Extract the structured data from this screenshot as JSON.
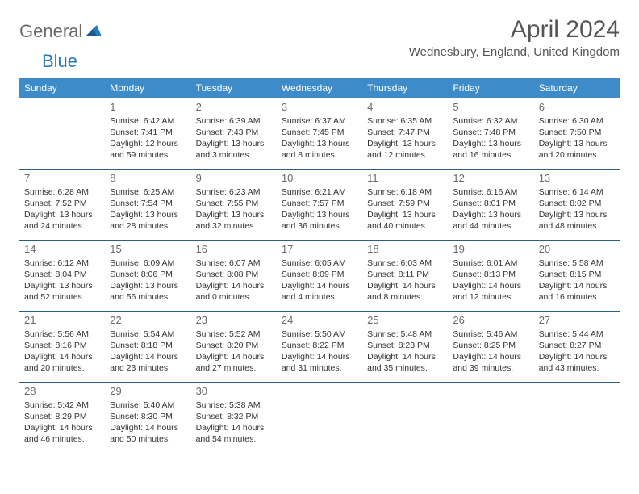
{
  "logo": {
    "text1": "General",
    "text2": "Blue"
  },
  "title": "April 2024",
  "location": "Wednesbury, England, United Kingdom",
  "colors": {
    "header_bg": "#3d8bc9",
    "header_text": "#ffffff",
    "border": "#2a5d8a",
    "title_color": "#555555",
    "logo_gray": "#6b6b6b",
    "logo_blue": "#2a7ab9",
    "body_text": "#333333",
    "daynum_color": "#6a6a6a",
    "background": "#ffffff"
  },
  "typography": {
    "title_fontsize": 30,
    "location_fontsize": 15,
    "logo_fontsize": 22,
    "header_fontsize": 12,
    "cell_fontsize": 10.5,
    "daynum_fontsize": 13
  },
  "days": [
    "Sunday",
    "Monday",
    "Tuesday",
    "Wednesday",
    "Thursday",
    "Friday",
    "Saturday"
  ],
  "weeks": [
    [
      null,
      {
        "n": "1",
        "sr": "Sunrise: 6:42 AM",
        "ss": "Sunset: 7:41 PM",
        "dl": "Daylight: 12 hours and 59 minutes."
      },
      {
        "n": "2",
        "sr": "Sunrise: 6:39 AM",
        "ss": "Sunset: 7:43 PM",
        "dl": "Daylight: 13 hours and 3 minutes."
      },
      {
        "n": "3",
        "sr": "Sunrise: 6:37 AM",
        "ss": "Sunset: 7:45 PM",
        "dl": "Daylight: 13 hours and 8 minutes."
      },
      {
        "n": "4",
        "sr": "Sunrise: 6:35 AM",
        "ss": "Sunset: 7:47 PM",
        "dl": "Daylight: 13 hours and 12 minutes."
      },
      {
        "n": "5",
        "sr": "Sunrise: 6:32 AM",
        "ss": "Sunset: 7:48 PM",
        "dl": "Daylight: 13 hours and 16 minutes."
      },
      {
        "n": "6",
        "sr": "Sunrise: 6:30 AM",
        "ss": "Sunset: 7:50 PM",
        "dl": "Daylight: 13 hours and 20 minutes."
      }
    ],
    [
      {
        "n": "7",
        "sr": "Sunrise: 6:28 AM",
        "ss": "Sunset: 7:52 PM",
        "dl": "Daylight: 13 hours and 24 minutes."
      },
      {
        "n": "8",
        "sr": "Sunrise: 6:25 AM",
        "ss": "Sunset: 7:54 PM",
        "dl": "Daylight: 13 hours and 28 minutes."
      },
      {
        "n": "9",
        "sr": "Sunrise: 6:23 AM",
        "ss": "Sunset: 7:55 PM",
        "dl": "Daylight: 13 hours and 32 minutes."
      },
      {
        "n": "10",
        "sr": "Sunrise: 6:21 AM",
        "ss": "Sunset: 7:57 PM",
        "dl": "Daylight: 13 hours and 36 minutes."
      },
      {
        "n": "11",
        "sr": "Sunrise: 6:18 AM",
        "ss": "Sunset: 7:59 PM",
        "dl": "Daylight: 13 hours and 40 minutes."
      },
      {
        "n": "12",
        "sr": "Sunrise: 6:16 AM",
        "ss": "Sunset: 8:01 PM",
        "dl": "Daylight: 13 hours and 44 minutes."
      },
      {
        "n": "13",
        "sr": "Sunrise: 6:14 AM",
        "ss": "Sunset: 8:02 PM",
        "dl": "Daylight: 13 hours and 48 minutes."
      }
    ],
    [
      {
        "n": "14",
        "sr": "Sunrise: 6:12 AM",
        "ss": "Sunset: 8:04 PM",
        "dl": "Daylight: 13 hours and 52 minutes."
      },
      {
        "n": "15",
        "sr": "Sunrise: 6:09 AM",
        "ss": "Sunset: 8:06 PM",
        "dl": "Daylight: 13 hours and 56 minutes."
      },
      {
        "n": "16",
        "sr": "Sunrise: 6:07 AM",
        "ss": "Sunset: 8:08 PM",
        "dl": "Daylight: 14 hours and 0 minutes."
      },
      {
        "n": "17",
        "sr": "Sunrise: 6:05 AM",
        "ss": "Sunset: 8:09 PM",
        "dl": "Daylight: 14 hours and 4 minutes."
      },
      {
        "n": "18",
        "sr": "Sunrise: 6:03 AM",
        "ss": "Sunset: 8:11 PM",
        "dl": "Daylight: 14 hours and 8 minutes."
      },
      {
        "n": "19",
        "sr": "Sunrise: 6:01 AM",
        "ss": "Sunset: 8:13 PM",
        "dl": "Daylight: 14 hours and 12 minutes."
      },
      {
        "n": "20",
        "sr": "Sunrise: 5:58 AM",
        "ss": "Sunset: 8:15 PM",
        "dl": "Daylight: 14 hours and 16 minutes."
      }
    ],
    [
      {
        "n": "21",
        "sr": "Sunrise: 5:56 AM",
        "ss": "Sunset: 8:16 PM",
        "dl": "Daylight: 14 hours and 20 minutes."
      },
      {
        "n": "22",
        "sr": "Sunrise: 5:54 AM",
        "ss": "Sunset: 8:18 PM",
        "dl": "Daylight: 14 hours and 23 minutes."
      },
      {
        "n": "23",
        "sr": "Sunrise: 5:52 AM",
        "ss": "Sunset: 8:20 PM",
        "dl": "Daylight: 14 hours and 27 minutes."
      },
      {
        "n": "24",
        "sr": "Sunrise: 5:50 AM",
        "ss": "Sunset: 8:22 PM",
        "dl": "Daylight: 14 hours and 31 minutes."
      },
      {
        "n": "25",
        "sr": "Sunrise: 5:48 AM",
        "ss": "Sunset: 8:23 PM",
        "dl": "Daylight: 14 hours and 35 minutes."
      },
      {
        "n": "26",
        "sr": "Sunrise: 5:46 AM",
        "ss": "Sunset: 8:25 PM",
        "dl": "Daylight: 14 hours and 39 minutes."
      },
      {
        "n": "27",
        "sr": "Sunrise: 5:44 AM",
        "ss": "Sunset: 8:27 PM",
        "dl": "Daylight: 14 hours and 43 minutes."
      }
    ],
    [
      {
        "n": "28",
        "sr": "Sunrise: 5:42 AM",
        "ss": "Sunset: 8:29 PM",
        "dl": "Daylight: 14 hours and 46 minutes."
      },
      {
        "n": "29",
        "sr": "Sunrise: 5:40 AM",
        "ss": "Sunset: 8:30 PM",
        "dl": "Daylight: 14 hours and 50 minutes."
      },
      {
        "n": "30",
        "sr": "Sunrise: 5:38 AM",
        "ss": "Sunset: 8:32 PM",
        "dl": "Daylight: 14 hours and 54 minutes."
      },
      null,
      null,
      null,
      null
    ]
  ]
}
